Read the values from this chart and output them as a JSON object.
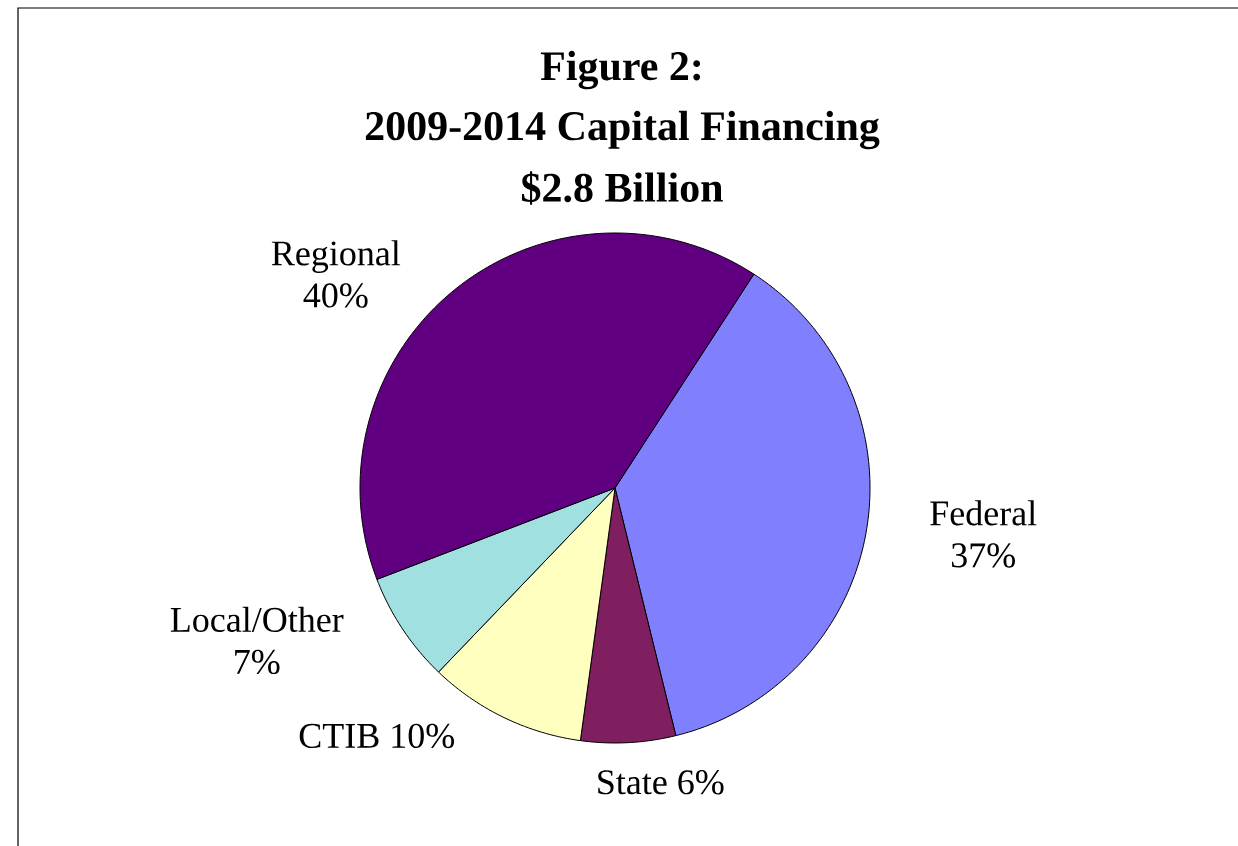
{
  "chart_data": {
    "type": "pie",
    "title": "Figure 2:",
    "subtitle": "2009-2014 Capital Financing",
    "annotations": [
      "$2.8 Billion"
    ],
    "categories": [
      "Federal",
      "State",
      "CTIB",
      "Local/Other",
      "Regional"
    ],
    "values": [
      37,
      6,
      10,
      7,
      40
    ],
    "value_labels": [
      "37%",
      "6%",
      "10%",
      "7%",
      "40%"
    ],
    "colors": [
      "#8080ff",
      "#7f1f5f",
      "#ffffc0",
      "#a0e0e0",
      "#600080"
    ]
  }
}
